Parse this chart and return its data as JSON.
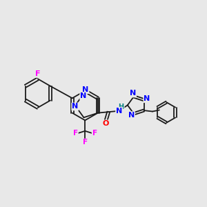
{
  "bg_color": "#e8e8e8",
  "bond_color": "#1a1a1a",
  "N_color": "#0000ff",
  "O_color": "#ff0000",
  "F_color": "#ff00ff",
  "H_color": "#008080",
  "figsize": [
    3.0,
    3.0
  ],
  "dpi": 100,
  "xlim": [
    0,
    10
  ],
  "ylim": [
    2.5,
    8.5
  ]
}
